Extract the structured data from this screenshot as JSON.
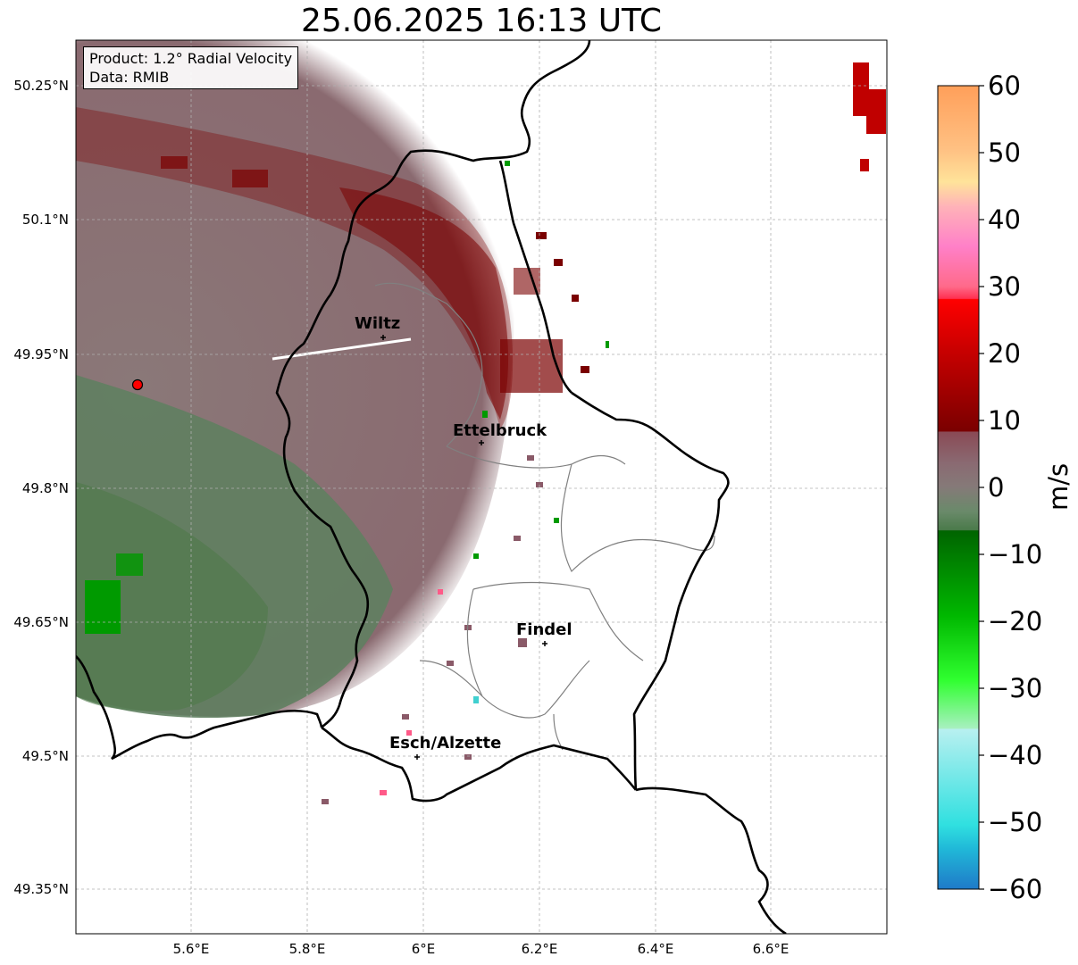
{
  "title": "25.06.2025 16:13 UTC",
  "info": {
    "product": "Product: 1.2° Radial Velocity",
    "data": "Data: RMIB"
  },
  "lat_ticks": [
    "50.25°N",
    "50.1°N",
    "49.95°N",
    "49.8°N",
    "49.65°N",
    "49.5°N",
    "49.35°N"
  ],
  "lon_ticks": [
    "5.6°E",
    "5.8°E",
    "6°E",
    "6.2°E",
    "6.4°E",
    "6.6°E"
  ],
  "cities": [
    {
      "name": "Wiltz"
    },
    {
      "name": "Ettelbruck"
    },
    {
      "name": "Findel"
    },
    {
      "name": "Esch/Alzette"
    }
  ],
  "colorbar": {
    "unit": "m/s",
    "ticks": [
      "60",
      "50",
      "40",
      "30",
      "20",
      "10",
      "0",
      "−10",
      "−20",
      "−30",
      "−40",
      "−50",
      "−60"
    ],
    "range": [
      -60,
      60
    ]
  },
  "colors": {
    "positive_dark": "#7a0000",
    "positive_mid": "#8b5a63",
    "near_zero": "#8a7a7a",
    "negative_mid": "#5a7a55",
    "negative_dark": "#006400",
    "radar_site": "#ff0000"
  }
}
